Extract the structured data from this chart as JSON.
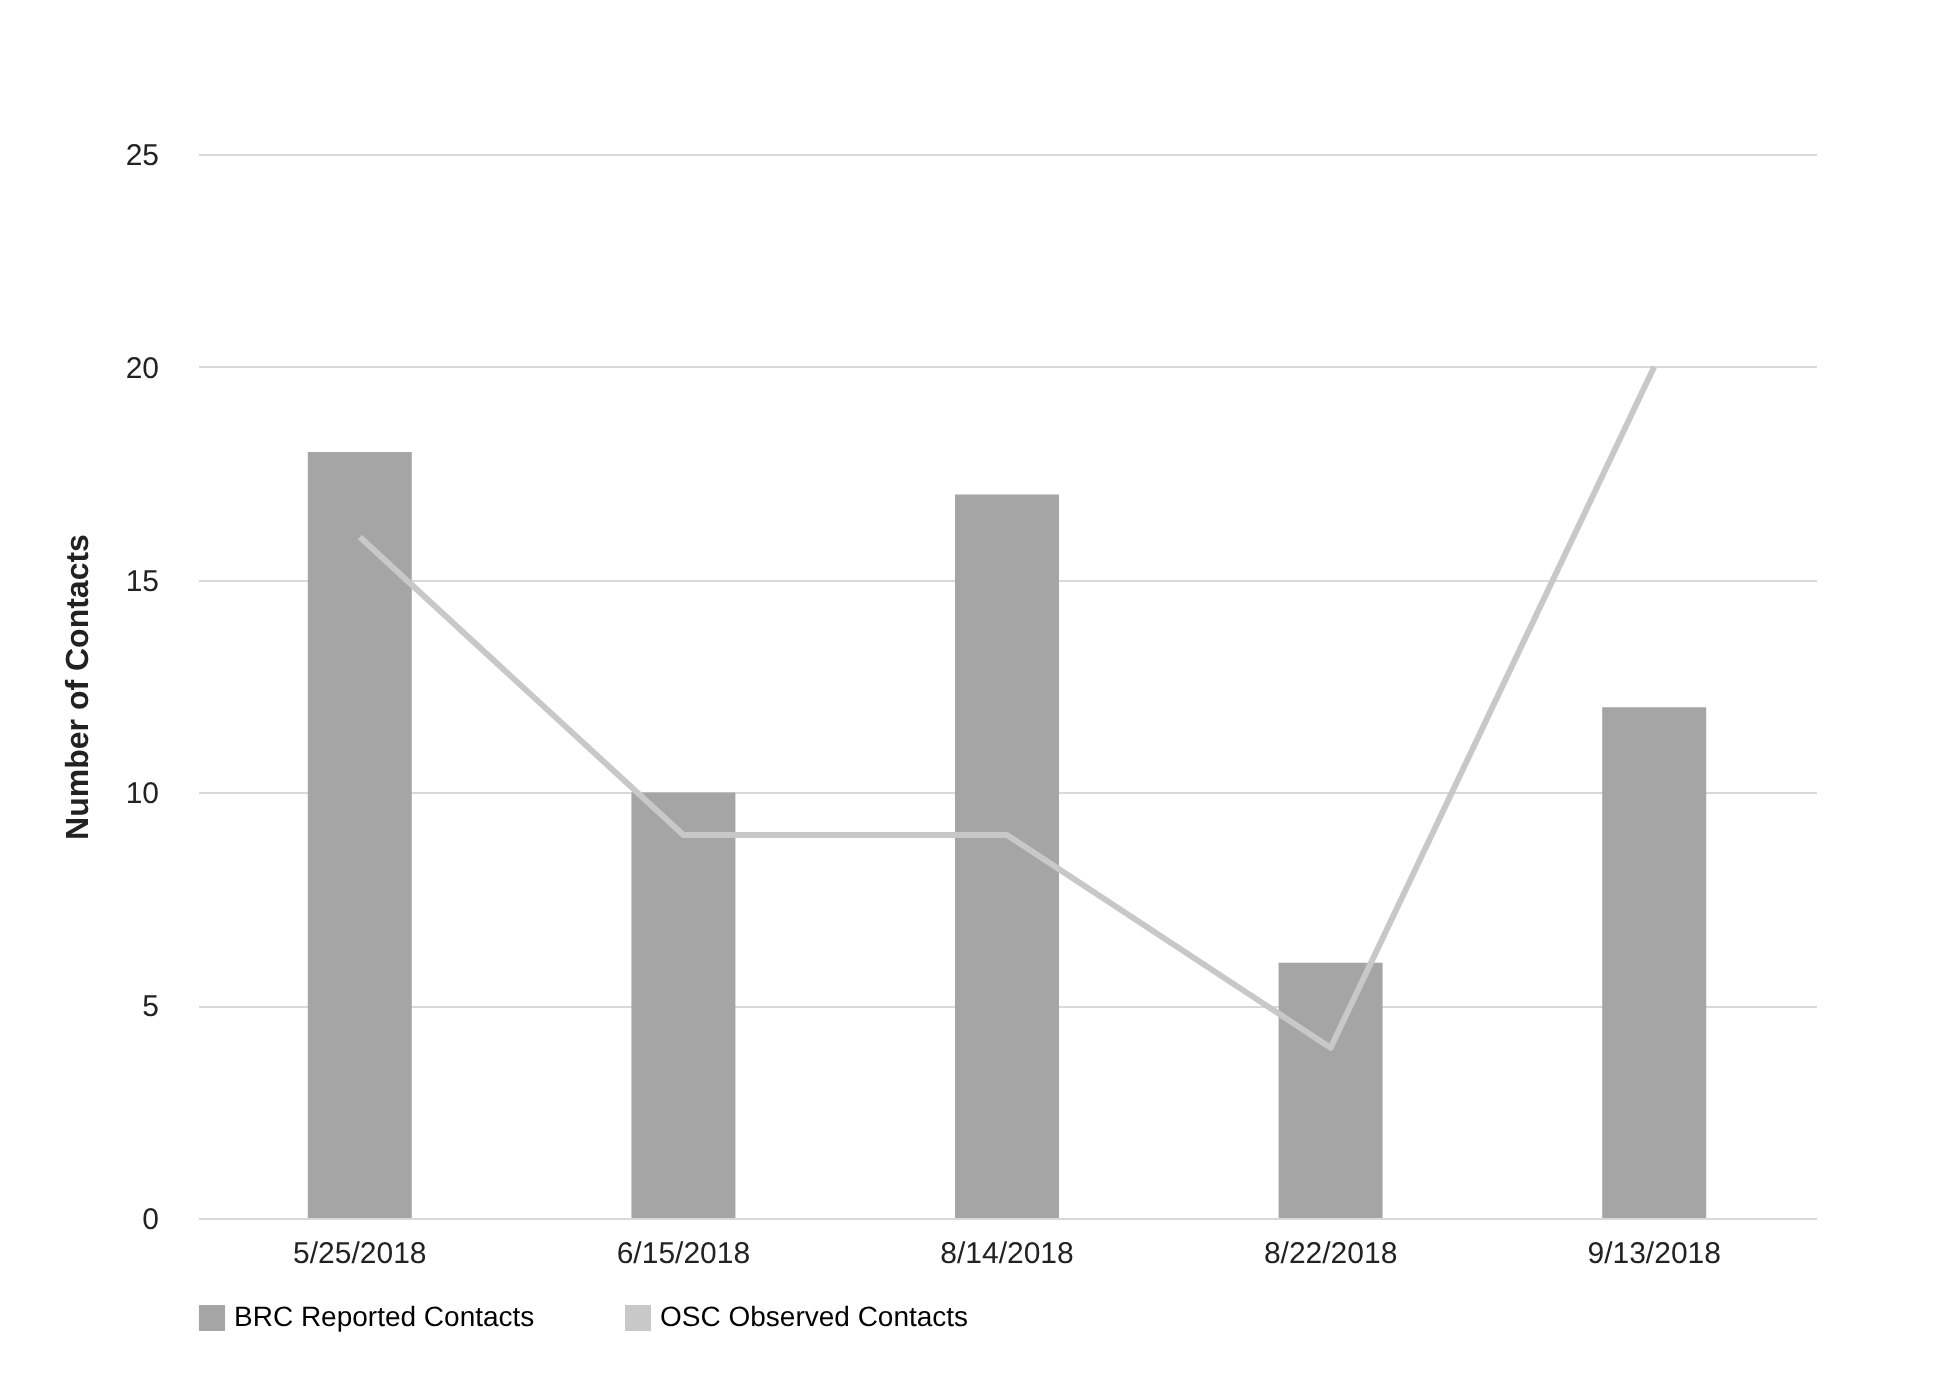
{
  "chart_data": {
    "type": "bar",
    "ylabel": "Number of Contacts",
    "categories": [
      "5/25/2018",
      "6/15/2018",
      "8/14/2018",
      "8/22/2018",
      "9/13/2018"
    ],
    "series": [
      {
        "name": "BRC Reported Contacts",
        "color": "#a5a5a5",
        "values": [
          18,
          10,
          17,
          6,
          12
        ]
      },
      {
        "name": "OSC Observed Contacts",
        "type": "line",
        "color": "#c8c8c8",
        "values": [
          16,
          9,
          9,
          4,
          20
        ]
      }
    ],
    "ylim": [
      0,
      25
    ],
    "yticks": [
      0,
      5,
      10,
      15,
      20,
      25
    ],
    "grid": "y",
    "legend": "bottom"
  }
}
